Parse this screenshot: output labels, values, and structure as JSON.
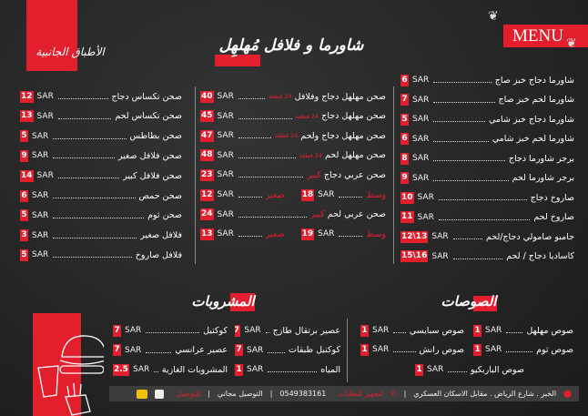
{
  "header": {
    "menu_label": "MENU",
    "title": "شاورما و فلافل مُهلهِل",
    "side_title": "الأطباق الجانبية"
  },
  "colors": {
    "accent": "#e31e2d",
    "background": "#262626"
  },
  "currency": "SAR",
  "shawarma": [
    {
      "name": "شاورما دجاج خبز صاج",
      "price": "6"
    },
    {
      "name": "شاورما لحم خبز صاج",
      "price": "7"
    },
    {
      "name": "شاورما دجاج خبز شامي",
      "price": "5"
    },
    {
      "name": "شاورما لحم خبز شامي",
      "price": "6"
    },
    {
      "name": "برجر شاورما دجاج",
      "price": "8"
    },
    {
      "name": "برجر شاورما لحم",
      "price": "9"
    },
    {
      "name": "صاروخ دجاج",
      "price": "10"
    },
    {
      "name": "صاروخ لحم",
      "price": "11"
    },
    {
      "name": "جامبو صامولي دجاج/لحم",
      "price": "12\\13"
    },
    {
      "name": "كاساديا دجاج / لحم",
      "price": "15\\16"
    }
  ],
  "platters": [
    {
      "name": "صحن مهلهل دجاج وفلافل",
      "tag": "24 قطعة",
      "price": "40"
    },
    {
      "name": "صحن مهلهل دجاج",
      "tag": "24 قطعة",
      "price": "45"
    },
    {
      "name": "صحن مهلهل دجاج ولحم",
      "tag": "24 قطعة",
      "price": "47"
    },
    {
      "name": "صحن مهلهل لحم",
      "tag": "24 قطعة",
      "price": "48"
    },
    {
      "name": "صحن عربي دجاج",
      "size": "كبير",
      "price": "23"
    },
    {
      "split": true,
      "a_label": "وسط",
      "a_price": "18",
      "b_label": "صغير",
      "b_price": "12"
    },
    {
      "name": "صحن عربي لحم",
      "size": "كبير",
      "price": "24"
    },
    {
      "split": true,
      "a_label": "وسط",
      "a_price": "19",
      "b_label": "صغير",
      "b_price": "13"
    }
  ],
  "sides": [
    {
      "name": "صحن تكساس دجاج",
      "price": "12"
    },
    {
      "name": "صحن تكساس لحم",
      "price": "13"
    },
    {
      "name": "صحن بطاطس",
      "price": "5"
    },
    {
      "name": "صحن فلافل صغير",
      "price": "9"
    },
    {
      "name": "صحن فلافل كبير",
      "price": "14"
    },
    {
      "name": "صحن حمص",
      "price": "6"
    },
    {
      "name": "صحن ثوم",
      "price": "5"
    },
    {
      "name": "فلافل صغير",
      "price": "3"
    },
    {
      "name": "فلافل صاروخ",
      "price": "5"
    }
  ],
  "sauces": {
    "title": "الصوصات",
    "items": [
      {
        "name": "صوص مهلهل",
        "price": "1"
      },
      {
        "name": "صوص سبايسي",
        "price": "1"
      },
      {
        "name": "صوص ثوم",
        "price": "1"
      },
      {
        "name": "صوص رانش",
        "price": "1"
      },
      {
        "name": "صوص الباربكيو",
        "price": "1"
      }
    ]
  },
  "drinks": {
    "title": "المشروبات",
    "items": [
      {
        "name": "عصير برتقال طازج",
        "price": "7"
      },
      {
        "name": "كوكتيل",
        "price": "7"
      },
      {
        "name": "كوكتيل طبقات",
        "price": "7"
      },
      {
        "name": "عصير عرانسي",
        "price": "7"
      },
      {
        "name": "المياه",
        "price": "1"
      },
      {
        "name": "المشروبات الغازية",
        "price": "2.5"
      }
    ]
  },
  "footer": {
    "address": "الخبر . شارع الرياض . مقابل الاسكان العسكري",
    "orders_label": "لتجهيز الطلبات :",
    "phone": "0549383161",
    "delivery_free": "التوصيل مجاني",
    "delivery_label": "للتوصيل :"
  }
}
